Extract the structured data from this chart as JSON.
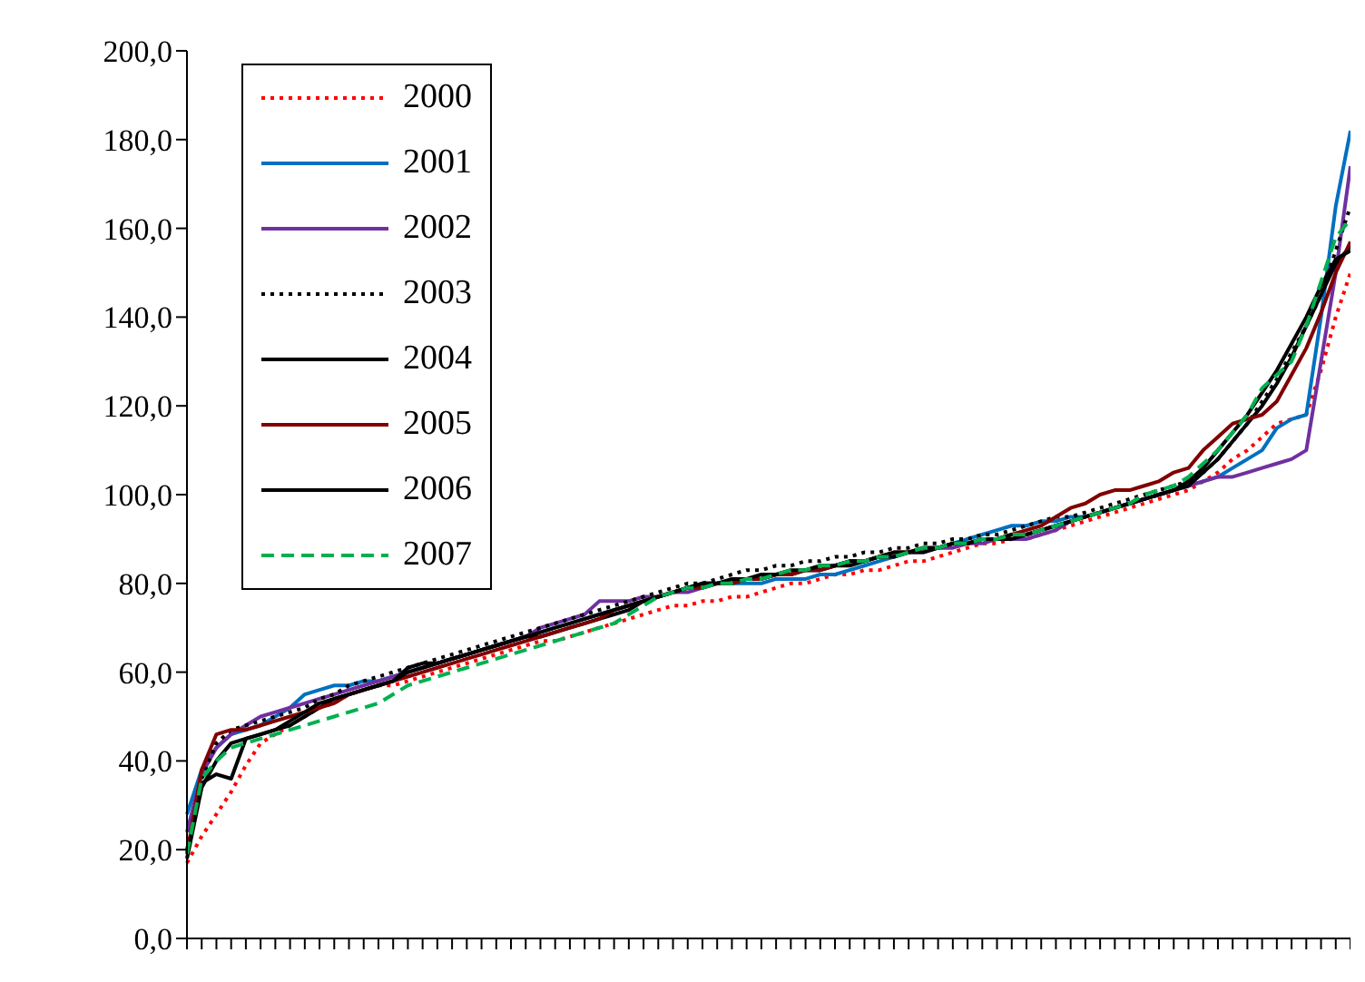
{
  "chart_data": {
    "type": "line",
    "categories": [
      null,
      null,
      null,
      null,
      null,
      null,
      null,
      null,
      null,
      null,
      null,
      null,
      null,
      null,
      null,
      null,
      null,
      null,
      null,
      null,
      null,
      null,
      null,
      null,
      null,
      null,
      null,
      null,
      null,
      null,
      null,
      null,
      null,
      null,
      null,
      null,
      null,
      null,
      null,
      null,
      null,
      null,
      null,
      null,
      null,
      null,
      null,
      null,
      null,
      null,
      null,
      null,
      null,
      null,
      null,
      null,
      null,
      null,
      null,
      null,
      null,
      null,
      null,
      null,
      null,
      null,
      null,
      null,
      null,
      null,
      null,
      null,
      null,
      null,
      null,
      null,
      null,
      null,
      null,
      null
    ],
    "ylim": [
      0,
      200
    ],
    "yticks": [
      {
        "value": 0,
        "label": "0,0"
      },
      {
        "value": 20,
        "label": "20,0"
      },
      {
        "value": 40,
        "label": "40,0"
      },
      {
        "value": 60,
        "label": "60,0"
      },
      {
        "value": 80,
        "label": "80,0"
      },
      {
        "value": 100,
        "label": "100,0"
      },
      {
        "value": 120,
        "label": "120,0"
      },
      {
        "value": 140,
        "label": "140,0"
      },
      {
        "value": 160,
        "label": "160,0"
      },
      {
        "value": 180,
        "label": "180,0"
      },
      {
        "value": 200,
        "label": "200,0"
      }
    ],
    "grid": false,
    "legend": "top left",
    "marker": "none",
    "series": [
      {
        "name": "2000",
        "color": "#ff0000",
        "line_style": "dotted",
        "values": [
          17,
          23,
          28,
          33,
          39,
          44,
          46,
          48,
          50,
          52,
          53,
          55,
          56,
          57,
          57,
          58,
          59,
          60,
          61,
          62,
          63,
          64,
          65,
          66,
          67,
          67,
          68,
          69,
          70,
          71,
          72,
          73,
          74,
          75,
          75,
          76,
          76,
          77,
          77,
          78,
          79,
          80,
          80,
          81,
          82,
          82,
          83,
          83,
          84,
          85,
          85,
          86,
          87,
          88,
          89,
          89,
          90,
          90,
          91,
          92,
          93,
          94,
          95,
          96,
          97,
          98,
          99,
          100,
          101,
          103,
          105,
          108,
          110,
          113,
          116,
          117,
          118,
          128,
          140,
          150
        ]
      },
      {
        "name": "2001",
        "color": "#0070c0",
        "line_style": "solid",
        "values": [
          28,
          38,
          43,
          46,
          47,
          48,
          50,
          52,
          55,
          56,
          57,
          57,
          58,
          58,
          59,
          60,
          61,
          62,
          63,
          64,
          65,
          66,
          67,
          68,
          69,
          70,
          71,
          72,
          73,
          74,
          75,
          76,
          77,
          78,
          79,
          79,
          80,
          80,
          80,
          80,
          81,
          81,
          81,
          82,
          82,
          83,
          84,
          85,
          86,
          87,
          88,
          88,
          89,
          90,
          91,
          92,
          93,
          93,
          94,
          94,
          95,
          95,
          96,
          97,
          98,
          99,
          100,
          101,
          102,
          103,
          104,
          106,
          108,
          110,
          115,
          117,
          118,
          140,
          165,
          182
        ]
      },
      {
        "name": "2002",
        "color": "#7030a0",
        "line_style": "solid",
        "values": [
          24,
          37,
          43,
          46,
          48,
          50,
          51,
          52,
          53,
          54,
          55,
          56,
          57,
          58,
          59,
          60,
          61,
          62,
          63,
          64,
          65,
          66,
          67,
          68,
          70,
          71,
          72,
          73,
          76,
          76,
          76,
          77,
          77,
          78,
          78,
          79,
          80,
          80,
          81,
          81,
          82,
          82,
          83,
          83,
          84,
          85,
          85,
          86,
          86,
          87,
          87,
          88,
          88,
          89,
          89,
          90,
          90,
          90,
          91,
          92,
          94,
          95,
          96,
          97,
          98,
          99,
          100,
          101,
          102,
          103,
          104,
          104,
          105,
          106,
          107,
          108,
          110,
          130,
          150,
          174
        ]
      },
      {
        "name": "2003",
        "color": "#000000",
        "line_style": "dotted",
        "values": [
          20,
          36,
          44,
          47,
          48,
          49,
          50,
          51,
          52,
          54,
          55,
          57,
          58,
          59,
          60,
          61,
          62,
          63,
          64,
          65,
          66,
          67,
          68,
          69,
          70,
          71,
          72,
          73,
          74,
          75,
          76,
          77,
          78,
          79,
          80,
          80,
          81,
          82,
          83,
          83,
          84,
          84,
          85,
          85,
          86,
          86,
          87,
          87,
          88,
          88,
          89,
          89,
          90,
          90,
          91,
          91,
          92,
          93,
          94,
          95,
          95,
          96,
          97,
          98,
          99,
          100,
          101,
          102,
          103,
          105,
          108,
          112,
          116,
          121,
          126,
          132,
          138,
          145,
          155,
          165
        ]
      },
      {
        "name": "2004",
        "color": "#000000",
        "line_style": "solid",
        "values": [
          19,
          35,
          37,
          36,
          45,
          46,
          47,
          48,
          50,
          52,
          54,
          55,
          56,
          57,
          58,
          61,
          62,
          62,
          63,
          64,
          65,
          66,
          67,
          68,
          68,
          69,
          70,
          71,
          72,
          73,
          74,
          76,
          77,
          78,
          79,
          80,
          80,
          80,
          81,
          81,
          82,
          82,
          83,
          83,
          84,
          84,
          85,
          86,
          86,
          87,
          87,
          88,
          89,
          89,
          90,
          90,
          90,
          91,
          92,
          93,
          94,
          95,
          96,
          97,
          98,
          99,
          100,
          101,
          102,
          105,
          108,
          112,
          116,
          120,
          125,
          131,
          138,
          145,
          152,
          156
        ]
      },
      {
        "name": "2005",
        "color": "#800000",
        "line_style": "solid",
        "values": [
          19,
          38,
          46,
          47,
          47,
          48,
          49,
          50,
          51,
          52,
          53,
          55,
          56,
          57,
          58,
          59,
          60,
          61,
          62,
          63,
          64,
          65,
          66,
          67,
          68,
          69,
          70,
          71,
          72,
          74,
          75,
          76,
          77,
          78,
          79,
          79,
          80,
          80,
          81,
          81,
          82,
          82,
          83,
          83,
          84,
          85,
          85,
          86,
          87,
          87,
          88,
          88,
          89,
          89,
          90,
          90,
          91,
          92,
          93,
          95,
          97,
          98,
          100,
          101,
          101,
          102,
          103,
          105,
          106,
          110,
          113,
          116,
          117,
          118,
          121,
          127,
          133,
          141,
          150,
          157
        ]
      },
      {
        "name": "2006",
        "color": "#000000",
        "line_style": "solid",
        "values": [
          18,
          34,
          40,
          44,
          45,
          46,
          47,
          49,
          51,
          53,
          54,
          55,
          56,
          57,
          58,
          60,
          61,
          62,
          63,
          64,
          65,
          66,
          67,
          68,
          69,
          70,
          71,
          72,
          73,
          74,
          75,
          76,
          77,
          78,
          79,
          80,
          80,
          81,
          81,
          82,
          82,
          83,
          83,
          84,
          84,
          85,
          85,
          86,
          87,
          87,
          88,
          88,
          89,
          89,
          90,
          90,
          91,
          91,
          92,
          93,
          94,
          95,
          96,
          97,
          98,
          99,
          100,
          101,
          103,
          106,
          110,
          114,
          118,
          123,
          128,
          134,
          140,
          147,
          153,
          155
        ]
      },
      {
        "name": "2007",
        "color": "#00b050",
        "line_style": "dashed",
        "values": [
          19,
          36,
          40,
          43,
          44,
          45,
          46,
          47,
          48,
          49,
          50,
          51,
          52,
          53,
          55,
          57,
          58,
          59,
          60,
          61,
          62,
          63,
          64,
          65,
          66,
          67,
          68,
          69,
          70,
          71,
          73,
          75,
          77,
          78,
          79,
          79,
          80,
          80,
          81,
          81,
          82,
          83,
          83,
          84,
          84,
          85,
          85,
          86,
          86,
          87,
          88,
          88,
          89,
          89,
          90,
          90,
          91,
          91,
          92,
          93,
          94,
          95,
          96,
          97,
          98,
          100,
          101,
          102,
          104,
          107,
          110,
          114,
          118,
          124,
          127,
          130,
          138,
          148,
          158,
          162
        ]
      }
    ]
  }
}
